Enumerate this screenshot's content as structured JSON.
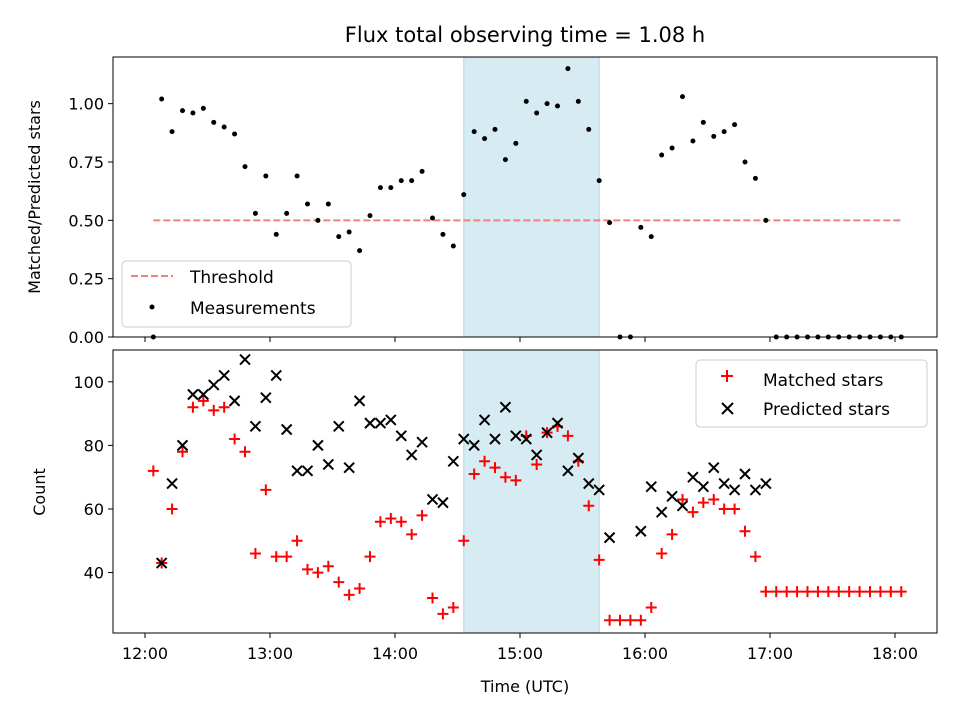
{
  "chart_data": [
    {
      "type": "scatter",
      "title": "Flux total observing time = 1.08 h",
      "ylabel": "Matched/Predicted stars",
      "ylim": [
        0,
        1.2
      ],
      "yticks": [
        "0.00",
        "0.25",
        "0.50",
        "0.75",
        "1.00"
      ],
      "grid": false,
      "legend_position": "bottom-left",
      "threshold": {
        "name": "Threshold",
        "value": 0.5,
        "x_start": "12:04",
        "x_end": "18:04",
        "color": "#f08080"
      },
      "series": [
        {
          "name": "Measurements",
          "color": "#000000",
          "points": [
            [
              "12:04",
              0.0
            ],
            [
              "12:08",
              1.02
            ],
            [
              "12:13",
              0.88
            ],
            [
              "12:18",
              0.97
            ],
            [
              "12:23",
              0.96
            ],
            [
              "12:28",
              0.98
            ],
            [
              "12:33",
              0.92
            ],
            [
              "12:38",
              0.9
            ],
            [
              "12:43",
              0.87
            ],
            [
              "12:48",
              0.73
            ],
            [
              "12:53",
              0.53
            ],
            [
              "12:58",
              0.69
            ],
            [
              "13:03",
              0.44
            ],
            [
              "13:08",
              0.53
            ],
            [
              "13:13",
              0.69
            ],
            [
              "13:18",
              0.57
            ],
            [
              "13:23",
              0.5
            ],
            [
              "13:28",
              0.57
            ],
            [
              "13:33",
              0.43
            ],
            [
              "13:38",
              0.45
            ],
            [
              "13:43",
              0.37
            ],
            [
              "13:48",
              0.52
            ],
            [
              "13:53",
              0.64
            ],
            [
              "13:58",
              0.64
            ],
            [
              "14:03",
              0.67
            ],
            [
              "14:08",
              0.67
            ],
            [
              "14:13",
              0.71
            ],
            [
              "14:18",
              0.51
            ],
            [
              "14:23",
              0.44
            ],
            [
              "14:28",
              0.39
            ],
            [
              "14:33",
              0.61
            ],
            [
              "14:38",
              0.88
            ],
            [
              "14:43",
              0.85
            ],
            [
              "14:48",
              0.89
            ],
            [
              "14:53",
              0.76
            ],
            [
              "14:58",
              0.83
            ],
            [
              "15:03",
              1.01
            ],
            [
              "15:08",
              0.96
            ],
            [
              "15:13",
              1.0
            ],
            [
              "15:18",
              0.99
            ],
            [
              "15:23",
              1.15
            ],
            [
              "15:28",
              1.01
            ],
            [
              "15:33",
              0.89
            ],
            [
              "15:38",
              0.67
            ],
            [
              "15:43",
              0.49
            ],
            [
              "15:48",
              0.0
            ],
            [
              "15:53",
              0.0
            ],
            [
              "15:58",
              0.47
            ],
            [
              "16:03",
              0.43
            ],
            [
              "16:08",
              0.78
            ],
            [
              "16:13",
              0.81
            ],
            [
              "16:18",
              1.03
            ],
            [
              "16:23",
              0.84
            ],
            [
              "16:28",
              0.92
            ],
            [
              "16:33",
              0.86
            ],
            [
              "16:38",
              0.88
            ],
            [
              "16:43",
              0.91
            ],
            [
              "16:48",
              0.75
            ],
            [
              "16:53",
              0.68
            ],
            [
              "16:58",
              0.5
            ],
            [
              "17:03",
              0.0
            ],
            [
              "17:08",
              0.0
            ],
            [
              "17:13",
              0.0
            ],
            [
              "17:18",
              0.0
            ],
            [
              "17:23",
              0.0
            ],
            [
              "17:28",
              0.0
            ],
            [
              "17:33",
              0.0
            ],
            [
              "17:38",
              0.0
            ],
            [
              "17:43",
              0.0
            ],
            [
              "17:48",
              0.0
            ],
            [
              "17:53",
              0.0
            ],
            [
              "17:58",
              0.0
            ],
            [
              "18:03",
              0.0
            ]
          ]
        }
      ],
      "shaded_interval": {
        "start": "14:33",
        "end": "15:38",
        "color": "#add8e6"
      }
    },
    {
      "type": "scatter",
      "xlabel": "Time (UTC)",
      "ylabel": "Count",
      "ylim": [
        21,
        110
      ],
      "yticks": [
        "40",
        "60",
        "80",
        "100"
      ],
      "xticks": [
        "12:00",
        "13:00",
        "14:00",
        "15:00",
        "16:00",
        "17:00",
        "18:00"
      ],
      "grid": false,
      "legend_position": "top-right",
      "series": [
        {
          "name": "Matched stars",
          "marker": "plus",
          "color": "#ff0000",
          "points": [
            [
              "12:04",
              72
            ],
            [
              "12:08",
              43
            ],
            [
              "12:13",
              60
            ],
            [
              "12:18",
              78
            ],
            [
              "12:23",
              92
            ],
            [
              "12:28",
              94
            ],
            [
              "12:33",
              91
            ],
            [
              "12:38",
              92
            ],
            [
              "12:43",
              82
            ],
            [
              "12:48",
              78
            ],
            [
              "12:53",
              46
            ],
            [
              "12:58",
              66
            ],
            [
              "13:03",
              45
            ],
            [
              "13:08",
              45
            ],
            [
              "13:13",
              50
            ],
            [
              "13:18",
              41
            ],
            [
              "13:23",
              40
            ],
            [
              "13:28",
              42
            ],
            [
              "13:33",
              37
            ],
            [
              "13:38",
              33
            ],
            [
              "13:43",
              35
            ],
            [
              "13:48",
              45
            ],
            [
              "13:53",
              56
            ],
            [
              "13:58",
              57
            ],
            [
              "14:03",
              56
            ],
            [
              "14:08",
              52
            ],
            [
              "14:13",
              58
            ],
            [
              "14:18",
              32
            ],
            [
              "14:23",
              27
            ],
            [
              "14:28",
              29
            ],
            [
              "14:33",
              50
            ],
            [
              "14:38",
              71
            ],
            [
              "14:43",
              75
            ],
            [
              "14:48",
              73
            ],
            [
              "14:53",
              70
            ],
            [
              "14:58",
              69
            ],
            [
              "15:03",
              83
            ],
            [
              "15:08",
              74
            ],
            [
              "15:13",
              84
            ],
            [
              "15:18",
              86
            ],
            [
              "15:23",
              83
            ],
            [
              "15:28",
              75
            ],
            [
              "15:33",
              61
            ],
            [
              "15:38",
              44
            ],
            [
              "15:43",
              25
            ],
            [
              "15:48",
              25
            ],
            [
              "15:53",
              25
            ],
            [
              "15:58",
              25
            ],
            [
              "16:03",
              29
            ],
            [
              "16:08",
              46
            ],
            [
              "16:13",
              52
            ],
            [
              "16:18",
              63
            ],
            [
              "16:23",
              59
            ],
            [
              "16:28",
              62
            ],
            [
              "16:33",
              63
            ],
            [
              "16:38",
              60
            ],
            [
              "16:43",
              60
            ],
            [
              "16:48",
              53
            ],
            [
              "16:53",
              45
            ],
            [
              "16:58",
              34
            ],
            [
              "17:03",
              34
            ],
            [
              "17:08",
              34
            ],
            [
              "17:13",
              34
            ],
            [
              "17:18",
              34
            ],
            [
              "17:23",
              34
            ],
            [
              "17:28",
              34
            ],
            [
              "17:33",
              34
            ],
            [
              "17:38",
              34
            ],
            [
              "17:43",
              34
            ],
            [
              "17:48",
              34
            ],
            [
              "17:53",
              34
            ],
            [
              "17:58",
              34
            ],
            [
              "18:03",
              34
            ]
          ]
        },
        {
          "name": "Predicted stars",
          "marker": "x",
          "color": "#000000",
          "points": [
            [
              "12:08",
              43
            ],
            [
              "12:13",
              68
            ],
            [
              "12:18",
              80
            ],
            [
              "12:23",
              96
            ],
            [
              "12:28",
              96
            ],
            [
              "12:33",
              99
            ],
            [
              "12:38",
              102
            ],
            [
              "12:43",
              94
            ],
            [
              "12:48",
              107
            ],
            [
              "12:53",
              86
            ],
            [
              "12:58",
              95
            ],
            [
              "13:03",
              102
            ],
            [
              "13:08",
              85
            ],
            [
              "13:13",
              72
            ],
            [
              "13:18",
              72
            ],
            [
              "13:23",
              80
            ],
            [
              "13:28",
              74
            ],
            [
              "13:33",
              86
            ],
            [
              "13:38",
              73
            ],
            [
              "13:43",
              94
            ],
            [
              "13:48",
              87
            ],
            [
              "13:53",
              87
            ],
            [
              "13:58",
              88
            ],
            [
              "14:03",
              83
            ],
            [
              "14:08",
              77
            ],
            [
              "14:13",
              81
            ],
            [
              "14:18",
              63
            ],
            [
              "14:23",
              62
            ],
            [
              "14:28",
              75
            ],
            [
              "14:33",
              82
            ],
            [
              "14:38",
              80
            ],
            [
              "14:43",
              88
            ],
            [
              "14:48",
              82
            ],
            [
              "14:53",
              92
            ],
            [
              "14:58",
              83
            ],
            [
              "15:03",
              82
            ],
            [
              "15:08",
              77
            ],
            [
              "15:13",
              84
            ],
            [
              "15:18",
              87
            ],
            [
              "15:23",
              72
            ],
            [
              "15:28",
              76
            ],
            [
              "15:33",
              68
            ],
            [
              "15:38",
              66
            ],
            [
              "15:43",
              51
            ],
            [
              "15:58",
              53
            ],
            [
              "16:03",
              67
            ],
            [
              "16:08",
              59
            ],
            [
              "16:13",
              64
            ],
            [
              "16:18",
              61
            ],
            [
              "16:23",
              70
            ],
            [
              "16:28",
              67
            ],
            [
              "16:33",
              73
            ],
            [
              "16:38",
              68
            ],
            [
              "16:43",
              66
            ],
            [
              "16:48",
              71
            ],
            [
              "16:53",
              66
            ],
            [
              "16:58",
              68
            ]
          ]
        }
      ],
      "shaded_interval": {
        "start": "14:33",
        "end": "15:38",
        "color": "#add8e6"
      }
    }
  ]
}
